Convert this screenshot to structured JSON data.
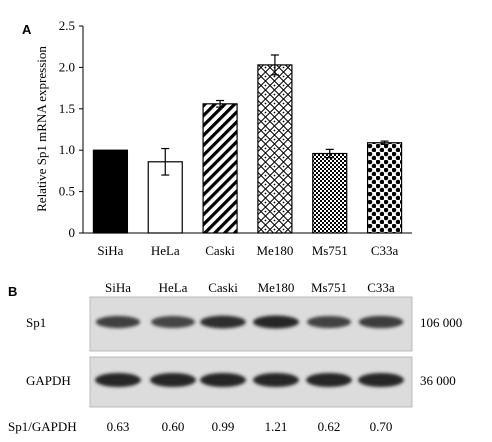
{
  "panel_a": {
    "label": "A"
  },
  "panel_b": {
    "label": "B",
    "lanes": [
      "SiHa",
      "HeLa",
      "Caski",
      "Me180",
      "Ms751",
      "C33a"
    ],
    "blots": [
      {
        "name": "Sp1",
        "mw": "106 000",
        "intensity": [
          0.72,
          0.68,
          0.95,
          1.0,
          0.7,
          0.78
        ]
      },
      {
        "name": "GAPDH",
        "mw": "36 000",
        "intensity": [
          1.0,
          1.0,
          1.0,
          1.0,
          1.0,
          1.0
        ]
      }
    ],
    "ratio_label": "Sp1/GAPDH",
    "ratios": [
      "0.63",
      "0.60",
      "0.99",
      "1.21",
      "0.62",
      "0.70"
    ]
  },
  "chart_data": {
    "type": "bar",
    "title": "",
    "xlabel": "",
    "ylabel": "Relative Sp1 mRNA expression",
    "categories": [
      "SiHa",
      "HeLa",
      "Caski",
      "Me180",
      "Ms751",
      "C33a"
    ],
    "values": [
      1.0,
      0.86,
      1.56,
      2.03,
      0.96,
      1.09
    ],
    "errors": [
      0.0,
      0.16,
      0.04,
      0.12,
      0.05,
      0.02
    ],
    "ylim": [
      0,
      2.5
    ],
    "yticks": [
      "0",
      "0.5",
      "1.0",
      "1.5",
      "2.0",
      "2.5"
    ],
    "grid": false,
    "patterns": [
      "solid-black",
      "white",
      "diagonal-stripes",
      "diamond-lattice",
      "checkerboard",
      "dots"
    ]
  }
}
